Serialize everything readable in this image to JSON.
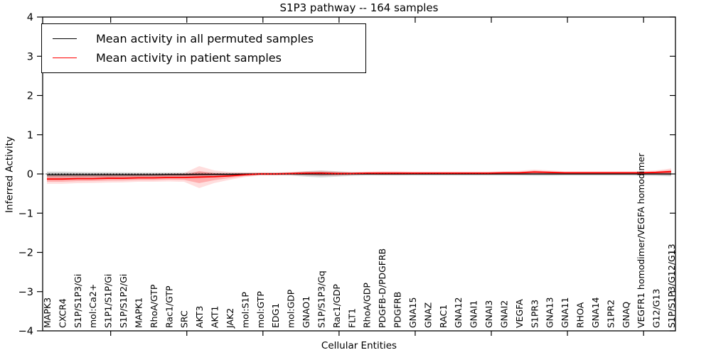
{
  "window": {
    "title": "S1P3 pathway -- 164 samples"
  },
  "legend": {
    "entries": [
      {
        "label": "Mean activity in all permuted samples",
        "color": "#000000"
      },
      {
        "label": "Mean activity in patient samples",
        "color": "#ff0000"
      }
    ]
  },
  "axes": {
    "xlabel": "Cellular Entities",
    "ylabel": "Inferred Activity"
  },
  "chart_data": {
    "type": "line",
    "title": "S1P3 pathway -- 164 samples",
    "xlabel": "Cellular Entities",
    "ylabel": "Inferred Activity",
    "ylim": [
      -4,
      4
    ],
    "yticks": [
      4,
      3,
      2,
      1,
      0,
      -1,
      -2,
      -3,
      -4
    ],
    "grid": false,
    "legend_position": "upper left",
    "zero_reference_line": "dotted black at y=0",
    "x_major_tick_indices": [
      4,
      9,
      14,
      19,
      24,
      29,
      34,
      39
    ],
    "categories": [
      "MAPK3",
      "CXCR4",
      "S1P/S1P3/Gi",
      "mol:Ca2+",
      "S1P1/S1P/Gi",
      "S1P/S1P2/Gi",
      "MAPK1",
      "RhoA/GTP",
      "Rac1/GTP",
      "SRC",
      "AKT3",
      "AKT1",
      "JAK2",
      "mol:S1P",
      "mol:GTP",
      "EDG1",
      "mol:GDP",
      "GNAO1",
      "S1P/S1P3/Gq",
      "Rac1/GDP",
      "FLT1",
      "RhoA/GDP",
      "PDGFB-D/PDGFRB",
      "PDGFRB",
      "GNA15",
      "GNAZ",
      "RAC1",
      "GNA12",
      "GNAI1",
      "GNAI3",
      "GNAI2",
      "VEGFA",
      "S1PR3",
      "GNA13",
      "GNA11",
      "RHOA",
      "GNA14",
      "S1PR2",
      "GNAQ",
      "VEGFR1 homodimer/VEGFA homodimer",
      "G12/G13",
      "S1P/S1P3/G12/G13"
    ],
    "series": [
      {
        "name": "Mean activity in all permuted samples",
        "color": "#000000",
        "band_color": "#000000",
        "values": [
          -0.02,
          -0.02,
          -0.02,
          -0.02,
          -0.02,
          -0.02,
          -0.02,
          -0.02,
          -0.015,
          -0.015,
          -0.01,
          -0.01,
          -0.01,
          -0.005,
          0,
          0,
          0,
          0,
          0,
          0,
          0,
          0,
          0,
          0,
          0,
          0,
          0,
          0,
          0,
          0,
          0,
          0,
          0,
          0,
          0,
          0,
          0,
          0,
          0,
          0,
          0,
          0
        ],
        "band_halfwidth": [
          0.08,
          0.08,
          0.075,
          0.07,
          0.07,
          0.065,
          0.06,
          0.06,
          0.055,
          0.055,
          0.06,
          0.05,
          0.045,
          0.04,
          0.035,
          0.035,
          0.04,
          0.07,
          0.09,
          0.07,
          0.05,
          0.04,
          0.04,
          0.04,
          0.04,
          0.04,
          0.04,
          0.04,
          0.04,
          0.04,
          0.04,
          0.04,
          0.045,
          0.045,
          0.04,
          0.04,
          0.04,
          0.04,
          0.04,
          0.045,
          0.05,
          0.06
        ]
      },
      {
        "name": "Mean activity in patient samples",
        "color": "#ff0000",
        "band_color": "#ff0000",
        "values": [
          -0.13,
          -0.13,
          -0.12,
          -0.12,
          -0.11,
          -0.11,
          -0.1,
          -0.1,
          -0.09,
          -0.09,
          -0.08,
          -0.07,
          -0.05,
          -0.02,
          0,
          0,
          0.01,
          0.02,
          0.02,
          0.01,
          0.01,
          0.02,
          0.02,
          0.02,
          0.02,
          0.02,
          0.02,
          0.02,
          0.02,
          0.02,
          0.03,
          0.03,
          0.05,
          0.04,
          0.03,
          0.03,
          0.03,
          0.03,
          0.03,
          0.03,
          0.04,
          0.06
        ],
        "band_halfwidth": [
          0.12,
          0.12,
          0.115,
          0.11,
          0.11,
          0.105,
          0.1,
          0.1,
          0.1,
          0.11,
          0.28,
          0.16,
          0.1,
          0.06,
          0.04,
          0.04,
          0.04,
          0.05,
          0.06,
          0.05,
          0.04,
          0.04,
          0.05,
          0.05,
          0.04,
          0.04,
          0.04,
          0.04,
          0.04,
          0.04,
          0.04,
          0.05,
          0.06,
          0.05,
          0.04,
          0.04,
          0.04,
          0.04,
          0.04,
          0.04,
          0.05,
          0.08
        ]
      }
    ]
  }
}
